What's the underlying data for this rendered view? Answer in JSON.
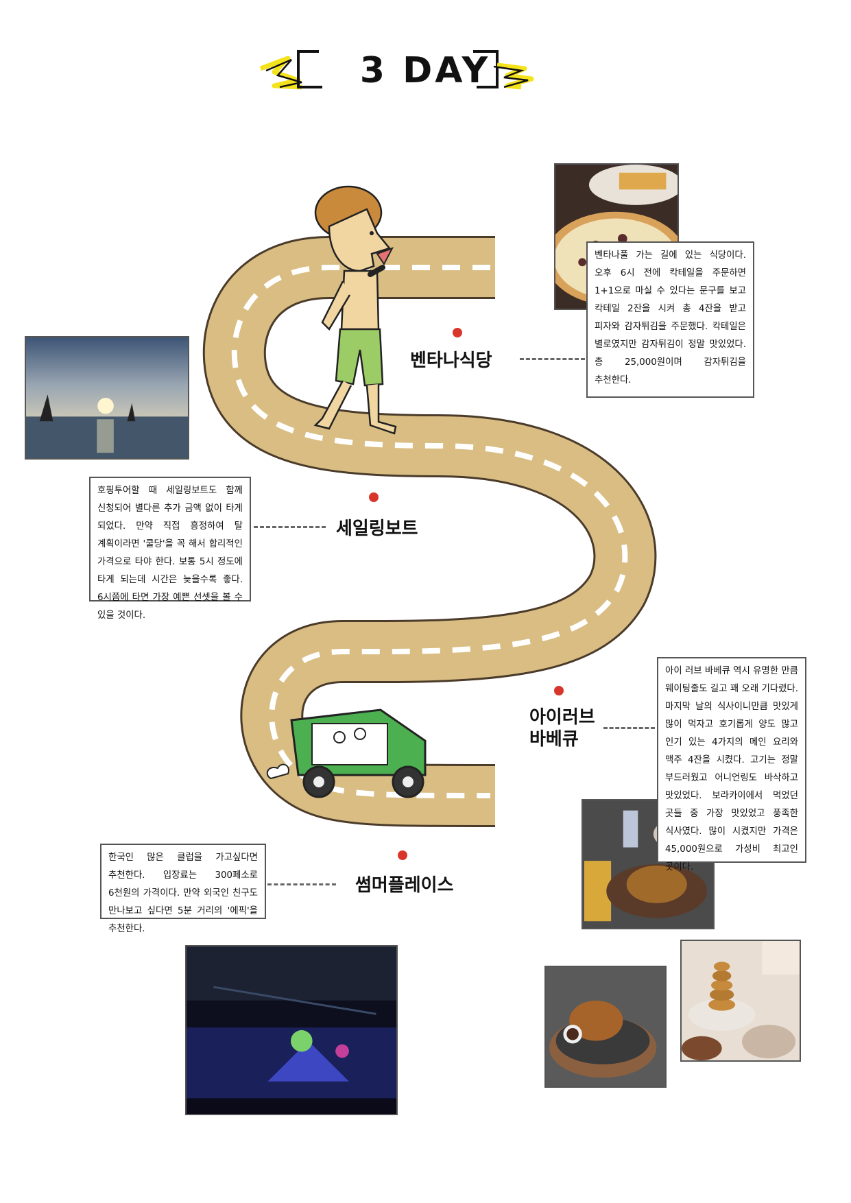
{
  "title": "3 DAY",
  "colors": {
    "road": "#d9bd83",
    "road_edge": "#4a3b2a",
    "title_accent": "#f4e21b",
    "pin": "#d9362b",
    "tuktuk": "#4caf50",
    "shorts": "#9ccc65",
    "hair": "#c98a3b"
  },
  "places": [
    {
      "name": "벤타나식당",
      "description": "벤타나풀 가는 길에 있는 식당이다. 오후 6시 전에 칵테일을 주문하면 1+1으로 마실 수 있다는 문구를 보고 칵테일 2잔을 시켜 총 4잔을 받고 피자와 감자튀김을 주문했다. 칵테일은 별로였지만 감자튀김이 정말 맛있었다. 총 25,000원이며 감자튀김을 추천한다."
    },
    {
      "name": "세일링보트",
      "description": "호핑투어할 때 세일링보트도 함께 신청되어 별다른 추가 금액 없이 타게 되었다. 만약 직접 흥정하여 탈 계획이라면 '쿨당'을 꼭 해서 합리적인 가격으로 타야 한다. 보통 5시 정도에 타게 되는데 시간은 늦을수록 좋다. 6시쯤에 타면 가장 예쁜 선셋을 볼 수 있을 것이다."
    },
    {
      "name_line1": "아이러브",
      "name_line2": "바베큐",
      "description": "아이 러브 바베큐 역시 유명한 만큼 웨이팅줄도 길고 꽤 오래 기다렸다. 마지막 날의 식사이니만큼 맛있게 많이 먹자고 호기롭게 양도 많고 인기 있는 4가지의 메인 요리와 맥주 4잔을 시켰다. 고기는 정말 부드러웠고 어니언링도 바삭하고 맛있었다. 보라카이에서 먹었던 곳들 중 가장 맛있었고 풍족한 식사였다. 많이 시켰지만 가격은 45,000원으로 가성비 최고인 곳이다."
    },
    {
      "name": "썸머플레이스",
      "description": "한국인 많은 클럽을 가고싶다면 추천한다. 입장료는 300페소로 6천원의 가격이다. 만약 외국인 친구도 만나보고 싶다면 5분 거리의 '에픽'을 추천한다."
    }
  ]
}
